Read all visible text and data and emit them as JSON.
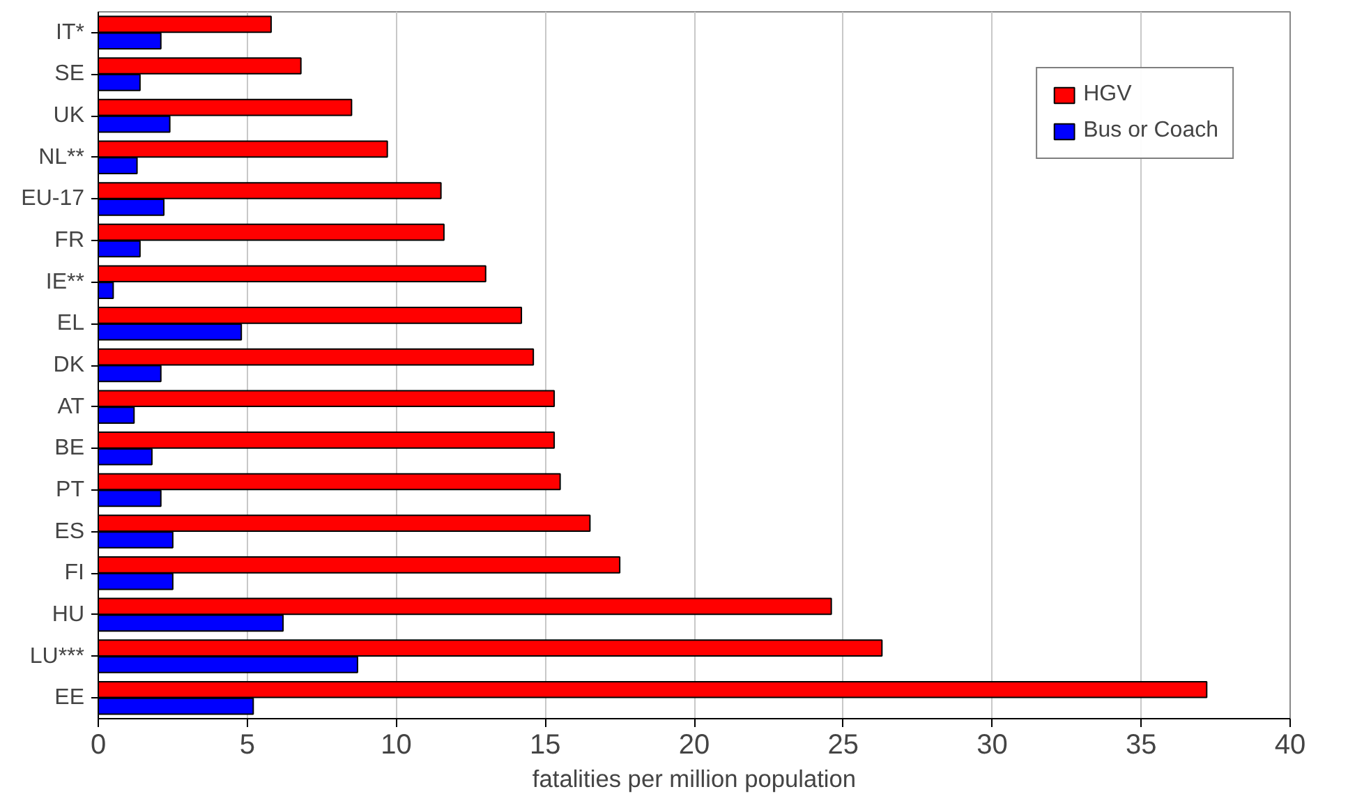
{
  "chart_data": {
    "type": "bar",
    "orientation": "horizontal",
    "xlabel": "fatalities per million population",
    "categories": [
      "IT*",
      "SE",
      "UK",
      "NL**",
      "EU-17",
      "FR",
      "IE**",
      "EL",
      "DK",
      "AT",
      "BE",
      "PT",
      "ES",
      "FI",
      "HU",
      "LU***",
      "EE"
    ],
    "series": [
      {
        "name": "HGV",
        "color": "#ff0000",
        "values": [
          5.8,
          6.8,
          8.5,
          9.7,
          11.5,
          11.6,
          13.0,
          14.2,
          14.6,
          15.3,
          15.3,
          15.5,
          16.5,
          17.5,
          24.6,
          26.3,
          37.2
        ]
      },
      {
        "name": "Bus or Coach",
        "color": "#0000ff",
        "values": [
          2.1,
          1.4,
          2.4,
          1.3,
          2.2,
          1.4,
          0.5,
          4.8,
          2.1,
          1.2,
          1.8,
          2.1,
          2.5,
          2.5,
          6.2,
          8.7,
          5.2
        ]
      }
    ],
    "xlim": [
      0,
      40
    ],
    "xticks": [
      0,
      5,
      10,
      15,
      20,
      25,
      30,
      35,
      40
    ],
    "grid": "x",
    "legend": "top right"
  }
}
